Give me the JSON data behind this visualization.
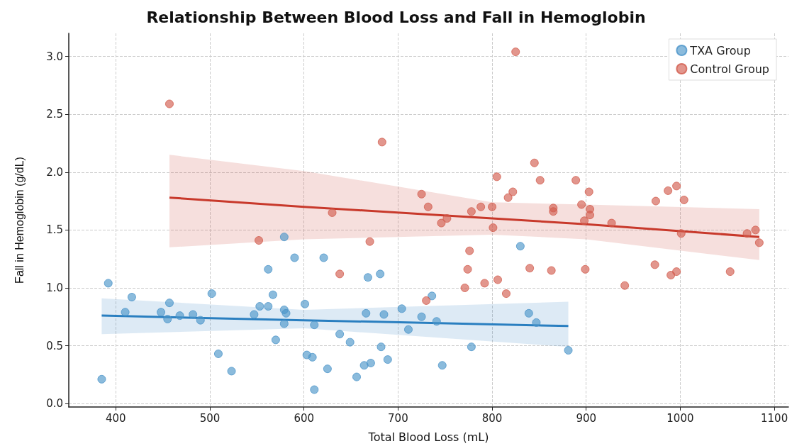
{
  "chart_data": {
    "type": "scatter",
    "title": "Relationship Between Blood Loss and Fall in Hemoglobin",
    "xlabel": "Total Blood Loss (mL)",
    "ylabel": "Fall in Hemoglobin (g/dL)",
    "xlim": [
      350,
      1115
    ],
    "xticks": [
      400,
      500,
      600,
      700,
      800,
      900,
      1000,
      1100
    ],
    "ylim": [
      -0.03,
      3.2
    ],
    "yticks": [
      {
        "value": 0,
        "label": "0.0"
      },
      {
        "value": 0.5,
        "label": "0.5"
      },
      {
        "value": 1,
        "label": "1.0"
      },
      {
        "value": 1.5,
        "label": "1.5"
      },
      {
        "value": 2,
        "label": "2.0"
      },
      {
        "value": 2.5,
        "label": "2.5"
      },
      {
        "value": 3,
        "label": "3.0"
      }
    ],
    "grid": true,
    "legend": "top right",
    "series": [
      {
        "name": "TXA Group",
        "color": "#4a94c9",
        "marker": "circle",
        "x": [
          385,
          392,
          410,
          417,
          448,
          455,
          457,
          468,
          482,
          490,
          502,
          509,
          523,
          547,
          553,
          562,
          562,
          567,
          570,
          579,
          579,
          581,
          579,
          590,
          601,
          603,
          609,
          611,
          611,
          621,
          625,
          638,
          649,
          656,
          664,
          666,
          668,
          671,
          681,
          682,
          685,
          689,
          704,
          711,
          725,
          736,
          741,
          747,
          778,
          830,
          839,
          847,
          881
        ],
        "values": [
          0.21,
          1.04,
          0.79,
          0.92,
          0.79,
          0.73,
          0.87,
          0.76,
          0.77,
          0.72,
          0.95,
          0.43,
          0.28,
          0.77,
          0.84,
          0.84,
          1.16,
          0.94,
          0.55,
          1.44,
          0.81,
          0.78,
          0.69,
          1.26,
          0.86,
          0.42,
          0.4,
          0.68,
          0.12,
          1.26,
          0.3,
          0.6,
          0.53,
          0.23,
          0.33,
          0.78,
          1.09,
          0.35,
          1.12,
          0.49,
          0.77,
          0.38,
          0.82,
          0.64,
          0.75,
          0.93,
          0.71,
          0.33,
          0.49,
          1.36,
          0.78,
          0.7,
          0.46
        ]
      },
      {
        "name": "Control Group",
        "color": "#d25b4c",
        "marker": "circle",
        "x": [
          457,
          552,
          630,
          638,
          670,
          683,
          725,
          730,
          732,
          746,
          752,
          771,
          774,
          776,
          778,
          788,
          792,
          800,
          801,
          805,
          806,
          815,
          817,
          822,
          825,
          840,
          845,
          851,
          863,
          865,
          865,
          889,
          895,
          898,
          899,
          903,
          904,
          904,
          927,
          941,
          973,
          974,
          987,
          990,
          996,
          996,
          1001,
          1004,
          1053,
          1071,
          1080,
          1084
        ],
        "values": [
          2.59,
          1.41,
          1.65,
          1.12,
          1.4,
          2.26,
          1.81,
          0.89,
          1.7,
          1.56,
          1.6,
          1.0,
          1.16,
          1.32,
          1.66,
          1.7,
          1.04,
          1.7,
          1.52,
          1.96,
          1.07,
          0.95,
          1.78,
          1.83,
          3.04,
          1.17,
          2.08,
          1.93,
          1.15,
          1.69,
          1.66,
          1.93,
          1.72,
          1.58,
          1.16,
          1.83,
          1.68,
          1.63,
          1.56,
          1.02,
          1.2,
          1.75,
          1.84,
          1.11,
          1.88,
          1.14,
          1.47,
          1.76,
          1.14,
          1.47,
          1.5,
          1.39
        ]
      },
      {
        "type": "line",
        "color": "#2a7fc0",
        "marker": "none",
        "x": [
          385,
          600,
          881
        ],
        "values": [
          0.76,
          0.72,
          0.67
        ],
        "lower": [
          0.6,
          0.65,
          0.49
        ],
        "upper": [
          0.91,
          0.81,
          0.88
        ]
      },
      {
        "type": "line",
        "color": "#c8392b",
        "marker": "none",
        "x": [
          457,
          600,
          800,
          900,
          1084
        ],
        "values": [
          1.78,
          1.7,
          1.6,
          1.55,
          1.44
        ],
        "lower": [
          1.35,
          1.42,
          1.46,
          1.42,
          1.24
        ],
        "upper": [
          2.15,
          2.01,
          1.74,
          1.72,
          1.68
        ]
      }
    ]
  }
}
